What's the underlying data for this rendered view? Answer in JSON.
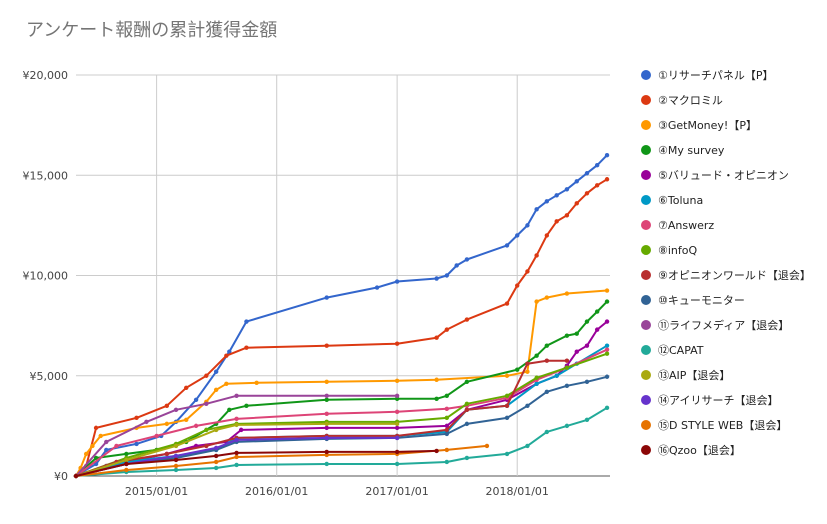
{
  "chart_data": {
    "type": "line",
    "title": "アンケート報酬の累計獲得金額",
    "xlabel": "",
    "ylabel": "",
    "ylim": [
      0,
      20000
    ],
    "yticks": [
      {
        "value": 0,
        "label": "¥0"
      },
      {
        "value": 5000,
        "label": "¥5,000"
      },
      {
        "value": 10000,
        "label": "¥10,000"
      },
      {
        "value": 15000,
        "label": "¥15,000"
      },
      {
        "value": 20000,
        "label": "¥20,000"
      }
    ],
    "xlim": [
      "2014-05-01",
      "2018-10-10"
    ],
    "xticks": [
      {
        "value": "2015-01-01",
        "label": "2015/01/01"
      },
      {
        "value": "2016-01-01",
        "label": "2016/01/01"
      },
      {
        "value": "2017-01-01",
        "label": "2017/01/01"
      },
      {
        "value": "2018-01-01",
        "label": "2018/01/01"
      }
    ],
    "grid": true,
    "legend_position": "right",
    "series": [
      {
        "name": "①リサーチパネル【P】",
        "color": "#3366cc",
        "points": [
          [
            "2014-05-01",
            0
          ],
          [
            "2014-05-20",
            200
          ],
          [
            "2014-07-01",
            600
          ],
          [
            "2014-08-01",
            1300
          ],
          [
            "2014-11-01",
            1600
          ],
          [
            "2015-01-15",
            2000
          ],
          [
            "2015-03-01",
            2700
          ],
          [
            "2015-05-01",
            3800
          ],
          [
            "2015-07-01",
            5200
          ],
          [
            "2015-08-10",
            6200
          ],
          [
            "2015-10-01",
            7700
          ],
          [
            "2016-06-01",
            8900
          ],
          [
            "2016-11-01",
            9400
          ],
          [
            "2017-01-01",
            9700
          ],
          [
            "2017-05-01",
            9850
          ],
          [
            "2017-06-01",
            10000
          ],
          [
            "2017-07-01",
            10500
          ],
          [
            "2017-08-01",
            10800
          ],
          [
            "2017-12-01",
            11500
          ],
          [
            "2018-01-01",
            12000
          ],
          [
            "2018-02-01",
            12500
          ],
          [
            "2018-03-01",
            13300
          ],
          [
            "2018-04-01",
            13700
          ],
          [
            "2018-05-01",
            14000
          ],
          [
            "2018-06-01",
            14300
          ],
          [
            "2018-07-01",
            14700
          ],
          [
            "2018-08-01",
            15100
          ],
          [
            "2018-09-01",
            15500
          ],
          [
            "2018-10-01",
            16000
          ]
        ]
      },
      {
        "name": "②マクロミル",
        "color": "#dc3912",
        "points": [
          [
            "2014-05-01",
            0
          ],
          [
            "2014-06-01",
            500
          ],
          [
            "2014-07-01",
            2400
          ],
          [
            "2014-11-01",
            2900
          ],
          [
            "2015-02-01",
            3500
          ],
          [
            "2015-04-01",
            4400
          ],
          [
            "2015-06-01",
            5000
          ],
          [
            "2015-08-01",
            6000
          ],
          [
            "2015-10-01",
            6400
          ],
          [
            "2016-06-01",
            6500
          ],
          [
            "2017-01-01",
            6600
          ],
          [
            "2017-05-01",
            6900
          ],
          [
            "2017-06-01",
            7300
          ],
          [
            "2017-08-01",
            7800
          ],
          [
            "2017-12-01",
            8600
          ],
          [
            "2018-01-01",
            9500
          ],
          [
            "2018-02-01",
            10200
          ],
          [
            "2018-03-01",
            11000
          ],
          [
            "2018-04-01",
            12000
          ],
          [
            "2018-05-01",
            12700
          ],
          [
            "2018-06-01",
            13000
          ],
          [
            "2018-07-01",
            13600
          ],
          [
            "2018-08-01",
            14100
          ],
          [
            "2018-09-01",
            14500
          ],
          [
            "2018-10-01",
            14800
          ]
        ]
      },
      {
        "name": "③GetMoney!【P】",
        "color": "#ff9900",
        "points": [
          [
            "2014-05-01",
            0
          ],
          [
            "2014-05-15",
            400
          ],
          [
            "2014-06-01",
            1100
          ],
          [
            "2014-06-20",
            1500
          ],
          [
            "2014-07-15",
            2000
          ],
          [
            "2014-11-01",
            2400
          ],
          [
            "2015-02-01",
            2600
          ],
          [
            "2015-04-01",
            2800
          ],
          [
            "2015-06-01",
            3700
          ],
          [
            "2015-07-01",
            4300
          ],
          [
            "2015-08-01",
            4600
          ],
          [
            "2015-11-01",
            4650
          ],
          [
            "2016-06-01",
            4700
          ],
          [
            "2017-01-01",
            4750
          ],
          [
            "2017-05-01",
            4800
          ],
          [
            "2017-12-01",
            5000
          ],
          [
            "2018-02-01",
            5200
          ],
          [
            "2018-03-01",
            8700
          ],
          [
            "2018-04-01",
            8900
          ],
          [
            "2018-06-01",
            9100
          ],
          [
            "2018-10-01",
            9250
          ]
        ]
      },
      {
        "name": "④My survey",
        "color": "#109618",
        "points": [
          [
            "2014-05-01",
            0
          ],
          [
            "2014-07-01",
            900
          ],
          [
            "2014-10-01",
            1100
          ],
          [
            "2015-01-01",
            1300
          ],
          [
            "2015-04-01",
            1700
          ],
          [
            "2015-07-01",
            2600
          ],
          [
            "2015-08-10",
            3300
          ],
          [
            "2015-10-01",
            3500
          ],
          [
            "2016-06-01",
            3800
          ],
          [
            "2017-01-01",
            3850
          ],
          [
            "2017-05-01",
            3850
          ],
          [
            "2017-06-01",
            4000
          ],
          [
            "2017-08-01",
            4700
          ],
          [
            "2018-01-01",
            5300
          ],
          [
            "2018-03-01",
            6000
          ],
          [
            "2018-04-01",
            6500
          ],
          [
            "2018-06-01",
            7000
          ],
          [
            "2018-07-01",
            7100
          ],
          [
            "2018-08-01",
            7700
          ],
          [
            "2018-09-01",
            8200
          ],
          [
            "2018-10-01",
            8700
          ]
        ]
      },
      {
        "name": "⑤バリュード・オピニオン",
        "color": "#990099",
        "points": [
          [
            "2014-05-01",
            0
          ],
          [
            "2014-08-01",
            500
          ],
          [
            "2014-11-01",
            800
          ],
          [
            "2015-02-01",
            1100
          ],
          [
            "2015-05-01",
            1500
          ],
          [
            "2015-08-01",
            1700
          ],
          [
            "2015-09-15",
            2300
          ],
          [
            "2016-06-01",
            2400
          ],
          [
            "2017-01-01",
            2400
          ],
          [
            "2017-06-01",
            2500
          ],
          [
            "2017-08-01",
            3300
          ],
          [
            "2017-12-01",
            3800
          ],
          [
            "2018-03-01",
            4600
          ],
          [
            "2018-05-01",
            5000
          ],
          [
            "2018-06-01",
            5500
          ],
          [
            "2018-07-01",
            6200
          ],
          [
            "2018-08-01",
            6500
          ],
          [
            "2018-09-01",
            7300
          ],
          [
            "2018-10-01",
            7700
          ]
        ]
      },
      {
        "name": "⑥Toluna",
        "color": "#0099c6",
        "points": [
          [
            "2014-05-01",
            0
          ],
          [
            "2014-10-01",
            700
          ],
          [
            "2015-03-01",
            1000
          ],
          [
            "2015-07-01",
            1300
          ],
          [
            "2015-09-01",
            1900
          ],
          [
            "2016-06-01",
            2000
          ],
          [
            "2017-01-01",
            2000
          ],
          [
            "2017-06-01",
            2200
          ],
          [
            "2017-08-01",
            3300
          ],
          [
            "2017-12-01",
            3500
          ],
          [
            "2018-03-01",
            4600
          ],
          [
            "2018-05-01",
            5000
          ],
          [
            "2018-07-01",
            5600
          ],
          [
            "2018-10-01",
            6500
          ]
        ]
      },
      {
        "name": "⑦Answerz",
        "color": "#dd4477",
        "points": [
          [
            "2014-05-01",
            0
          ],
          [
            "2014-09-01",
            1500
          ],
          [
            "2015-01-01",
            2000
          ],
          [
            "2015-05-01",
            2500
          ],
          [
            "2015-09-01",
            2850
          ],
          [
            "2016-06-01",
            3100
          ],
          [
            "2017-01-01",
            3200
          ],
          [
            "2017-06-01",
            3350
          ],
          [
            "2017-08-01",
            3500
          ],
          [
            "2017-12-01",
            3900
          ],
          [
            "2018-03-01",
            4800
          ],
          [
            "2018-06-01",
            5400
          ],
          [
            "2018-10-01",
            6300
          ]
        ]
      },
      {
        "name": "⑧infoQ",
        "color": "#66aa00",
        "points": [
          [
            "2014-05-01",
            0
          ],
          [
            "2014-10-01",
            900
          ],
          [
            "2015-03-01",
            1600
          ],
          [
            "2015-06-01",
            2300
          ],
          [
            "2015-09-01",
            2600
          ],
          [
            "2016-06-01",
            2700
          ],
          [
            "2017-01-01",
            2700
          ],
          [
            "2017-06-01",
            2900
          ],
          [
            "2017-08-01",
            3600
          ],
          [
            "2017-12-01",
            4000
          ],
          [
            "2018-03-01",
            4900
          ],
          [
            "2018-06-01",
            5400
          ],
          [
            "2018-10-01",
            6100
          ]
        ]
      },
      {
        "name": "⑨オピニオンワールド【退会】",
        "color": "#b82e2e",
        "points": [
          [
            "2014-05-01",
            0
          ],
          [
            "2014-09-01",
            700
          ],
          [
            "2015-02-01",
            1100
          ],
          [
            "2015-06-01",
            1500
          ],
          [
            "2015-09-01",
            1900
          ],
          [
            "2016-06-01",
            2000
          ],
          [
            "2017-01-01",
            2000
          ],
          [
            "2017-06-01",
            2300
          ],
          [
            "2017-08-01",
            3300
          ],
          [
            "2017-12-01",
            3500
          ],
          [
            "2018-02-01",
            5600
          ],
          [
            "2018-04-01",
            5750
          ],
          [
            "2018-06-01",
            5750
          ]
        ]
      },
      {
        "name": "⑩キューモニター",
        "color": "#316395",
        "points": [
          [
            "2014-05-01",
            0
          ],
          [
            "2014-10-01",
            600
          ],
          [
            "2015-03-01",
            900
          ],
          [
            "2015-07-01",
            1300
          ],
          [
            "2015-09-01",
            1700
          ],
          [
            "2016-06-01",
            1850
          ],
          [
            "2017-01-01",
            1900
          ],
          [
            "2017-06-01",
            2100
          ],
          [
            "2017-08-01",
            2600
          ],
          [
            "2017-12-01",
            2900
          ],
          [
            "2018-02-01",
            3500
          ],
          [
            "2018-04-01",
            4200
          ],
          [
            "2018-06-01",
            4500
          ],
          [
            "2018-08-01",
            4700
          ],
          [
            "2018-10-01",
            4950
          ]
        ]
      },
      {
        "name": "⑪ライフメディア【退会】",
        "color": "#994499",
        "points": [
          [
            "2014-05-01",
            0
          ],
          [
            "2014-08-01",
            1700
          ],
          [
            "2014-12-01",
            2700
          ],
          [
            "2015-03-01",
            3300
          ],
          [
            "2015-06-01",
            3600
          ],
          [
            "2015-09-01",
            4000
          ],
          [
            "2016-06-01",
            4000
          ],
          [
            "2017-01-01",
            4000
          ]
        ]
      },
      {
        "name": "⑫CAPAT",
        "color": "#22aa99",
        "points": [
          [
            "2014-05-01",
            0
          ],
          [
            "2014-10-01",
            200
          ],
          [
            "2015-03-01",
            300
          ],
          [
            "2015-07-01",
            400
          ],
          [
            "2015-09-01",
            550
          ],
          [
            "2016-06-01",
            600
          ],
          [
            "2017-01-01",
            600
          ],
          [
            "2017-06-01",
            700
          ],
          [
            "2017-08-01",
            900
          ],
          [
            "2017-12-01",
            1100
          ],
          [
            "2018-02-01",
            1500
          ],
          [
            "2018-04-01",
            2200
          ],
          [
            "2018-06-01",
            2500
          ],
          [
            "2018-08-01",
            2800
          ],
          [
            "2018-10-01",
            3400
          ]
        ]
      },
      {
        "name": "⑬AIP【退会】",
        "color": "#aaaa11",
        "points": [
          [
            "2014-05-01",
            0
          ],
          [
            "2014-10-01",
            800
          ],
          [
            "2015-03-01",
            1500
          ],
          [
            "2015-07-01",
            2300
          ],
          [
            "2015-09-01",
            2550
          ],
          [
            "2016-06-01",
            2600
          ],
          [
            "2017-01-01",
            2600
          ]
        ]
      },
      {
        "name": "⑭アイリサーチ【退会】",
        "color": "#6633cc",
        "points": [
          [
            "2014-05-01",
            0
          ],
          [
            "2014-10-01",
            600
          ],
          [
            "2015-03-01",
            1000
          ],
          [
            "2015-07-01",
            1400
          ],
          [
            "2015-09-01",
            1800
          ],
          [
            "2016-06-01",
            1900
          ],
          [
            "2017-01-01",
            1900
          ]
        ]
      },
      {
        "name": "⑮D STYLE WEB【退会】",
        "color": "#e67300",
        "points": [
          [
            "2014-05-01",
            0
          ],
          [
            "2014-10-01",
            300
          ],
          [
            "2015-03-01",
            500
          ],
          [
            "2015-07-01",
            700
          ],
          [
            "2015-09-01",
            950
          ],
          [
            "2016-06-01",
            1050
          ],
          [
            "2017-01-01",
            1100
          ],
          [
            "2017-06-01",
            1300
          ],
          [
            "2017-10-01",
            1500
          ]
        ]
      },
      {
        "name": "⑯Qzoo【退会】",
        "color": "#8b0707",
        "points": [
          [
            "2014-05-01",
            0
          ],
          [
            "2014-10-01",
            600
          ],
          [
            "2015-03-01",
            800
          ],
          [
            "2015-07-01",
            1000
          ],
          [
            "2015-09-01",
            1150
          ],
          [
            "2016-06-01",
            1200
          ],
          [
            "2017-01-01",
            1200
          ],
          [
            "2017-05-01",
            1250
          ]
        ]
      }
    ]
  }
}
